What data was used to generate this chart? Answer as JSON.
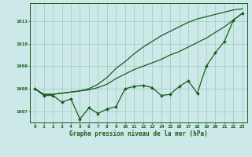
{
  "background_color": "#cce8e8",
  "grid_color": "#99ccbb",
  "line_color": "#1a5c1a",
  "title": "Graphe pression niveau de la mer (hPa)",
  "ylim": [
    1006.5,
    1011.8
  ],
  "yticks": [
    1007,
    1008,
    1009,
    1010,
    1011
  ],
  "xlim": [
    -0.5,
    23.5
  ],
  "xticks": [
    0,
    1,
    2,
    3,
    4,
    5,
    6,
    7,
    8,
    9,
    10,
    11,
    12,
    13,
    14,
    15,
    16,
    17,
    18,
    19,
    20,
    21,
    22,
    23
  ],
  "smooth_line1": [
    1008.0,
    1007.75,
    1007.75,
    1007.8,
    1007.85,
    1007.9,
    1007.95,
    1008.05,
    1008.2,
    1008.45,
    1008.65,
    1008.85,
    1009.0,
    1009.15,
    1009.3,
    1009.5,
    1009.65,
    1009.85,
    1010.05,
    1010.25,
    1010.5,
    1010.75,
    1011.05,
    1011.35
  ],
  "smooth_line2": [
    1008.0,
    1007.75,
    1007.75,
    1007.8,
    1007.85,
    1007.9,
    1008.0,
    1008.2,
    1008.5,
    1008.9,
    1009.2,
    1009.55,
    1009.85,
    1010.1,
    1010.35,
    1010.55,
    1010.75,
    1010.95,
    1011.1,
    1011.2,
    1011.3,
    1011.4,
    1011.5,
    1011.55
  ],
  "zigzag": [
    1008.0,
    1007.7,
    1007.7,
    1007.4,
    1007.55,
    1006.65,
    1007.15,
    1006.9,
    1007.1,
    1007.2,
    1008.0,
    1008.1,
    1008.15,
    1008.05,
    1007.7,
    1007.75,
    1008.1,
    1008.35,
    1007.8,
    1009.0,
    1009.6,
    1010.1,
    1011.05,
    1011.35
  ]
}
